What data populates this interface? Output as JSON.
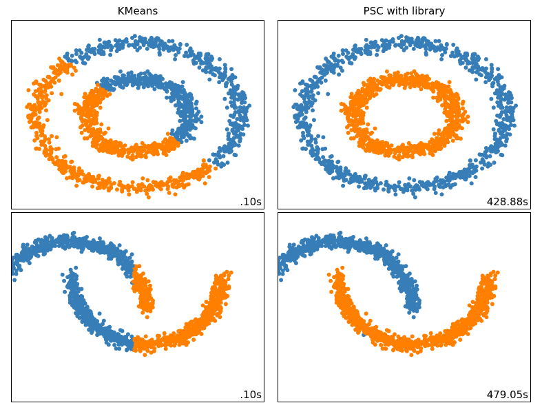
{
  "colors": {
    "cluster_0": "#377eb8",
    "cluster_1": "#ff7f00"
  },
  "titles": [
    "KMeans",
    "PSC with library"
  ],
  "chart_data": [
    {
      "type": "scatter",
      "title": "KMeans",
      "dataset": "circles",
      "time_label": ".10s",
      "xlim": [
        -1.25,
        1.25
      ],
      "ylim": [
        -1.25,
        1.25
      ],
      "grid": false,
      "axes_ticks": false,
      "series": [
        {
          "color": "#377eb8",
          "description": "upper-right portion of both rings"
        },
        {
          "color": "#ff7f00",
          "description": "lower-left portion of both rings"
        }
      ]
    },
    {
      "type": "scatter",
      "title": "PSC with library",
      "dataset": "circles",
      "time_label": "428.88s",
      "xlim": [
        -1.25,
        1.25
      ],
      "ylim": [
        -1.25,
        1.25
      ],
      "grid": false,
      "axes_ticks": false,
      "series": [
        {
          "color": "#377eb8",
          "description": "outer ring"
        },
        {
          "color": "#ff7f00",
          "description": "inner ring"
        }
      ]
    },
    {
      "type": "scatter",
      "dataset": "moons",
      "time_label": ".10s",
      "xlim": [
        -1.25,
        2.25
      ],
      "ylim": [
        -0.9,
        1.35
      ],
      "grid": false,
      "axes_ticks": false,
      "series": [
        {
          "color": "#377eb8",
          "description": "upper moon minus its right tip, plus left tip of lower moon"
        },
        {
          "color": "#ff7f00",
          "description": "lower moon bulk plus right tip of upper moon"
        }
      ]
    },
    {
      "type": "scatter",
      "dataset": "moons",
      "time_label": "479.05s",
      "xlim": [
        -1.25,
        2.25
      ],
      "ylim": [
        -0.9,
        1.35
      ],
      "grid": false,
      "axes_ticks": false,
      "series": [
        {
          "color": "#377eb8",
          "description": "upper moon"
        },
        {
          "color": "#ff7f00",
          "description": "lower moon"
        }
      ]
    }
  ]
}
